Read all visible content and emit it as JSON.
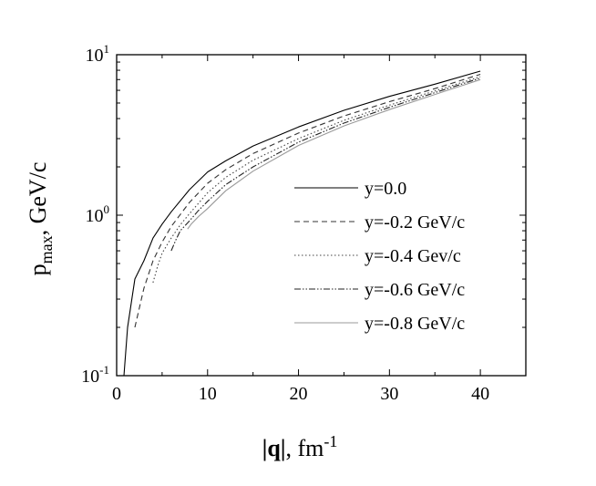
{
  "chart_data": {
    "type": "line",
    "xlabel": {
      "main": "|q|",
      "unit": ", fm",
      "unit_exp": "-1"
    },
    "ylabel": {
      "main": "p",
      "sub": "max",
      "unit": ", GeV/c"
    },
    "xlim": [
      0,
      45
    ],
    "ylim": [
      0.1,
      10
    ],
    "yscale": "log",
    "grid": false,
    "legend_position": "center-right",
    "x_ticks": [
      {
        "value": 0,
        "label": "0"
      },
      {
        "value": 10,
        "label": "10"
      },
      {
        "value": 20,
        "label": "20"
      },
      {
        "value": 30,
        "label": "30"
      },
      {
        "value": 40,
        "label": "40"
      }
    ],
    "y_ticks": [
      {
        "value": 0.1,
        "base": "10",
        "exp": "-1"
      },
      {
        "value": 1,
        "base": "10",
        "exp": "0"
      },
      {
        "value": 10,
        "base": "10",
        "exp": "1"
      }
    ],
    "series": [
      {
        "name": "y=0.0",
        "color": "#000000",
        "dash": "",
        "x": [
          0.8,
          1.2,
          2,
          3,
          4,
          5,
          6,
          8,
          10,
          12,
          15,
          20,
          25,
          30,
          35,
          40
        ],
        "y": [
          0.1,
          0.2,
          0.4,
          0.52,
          0.72,
          0.88,
          1.05,
          1.44,
          1.86,
          2.18,
          2.7,
          3.55,
          4.5,
          5.5,
          6.55,
          7.9
        ]
      },
      {
        "name": "y=-0.2 GeV/c",
        "color": "#333333",
        "dash": "6,4",
        "x": [
          2,
          3,
          4,
          5,
          6,
          8,
          10,
          12,
          15,
          20,
          25,
          30,
          35,
          40
        ],
        "y": [
          0.2,
          0.35,
          0.52,
          0.68,
          0.85,
          1.2,
          1.58,
          1.92,
          2.42,
          3.25,
          4.15,
          5.1,
          6.15,
          7.55
        ]
      },
      {
        "name": "y=-0.4 Gev/c",
        "color": "#444444",
        "dash": "1.5,2.5",
        "x": [
          4,
          4.5,
          5,
          6,
          7,
          8,
          10,
          12,
          15,
          20,
          25,
          30,
          35,
          40
        ],
        "y": [
          0.38,
          0.48,
          0.58,
          0.72,
          0.87,
          1.02,
          1.38,
          1.72,
          2.2,
          3.0,
          3.9,
          4.85,
          5.95,
          7.3
        ]
      },
      {
        "name": "y=-0.6 GeV/c",
        "color": "#222222",
        "dash": "7,2,1.5,2,1.5,2",
        "x": [
          6,
          6.5,
          7,
          8,
          9,
          10,
          12,
          15,
          20,
          25,
          30,
          35,
          40
        ],
        "y": [
          0.6,
          0.7,
          0.8,
          0.92,
          1.07,
          1.22,
          1.55,
          2.0,
          2.85,
          3.75,
          4.7,
          5.8,
          7.15
        ]
      },
      {
        "name": "y=-0.8 GeV/c",
        "color": "#999999",
        "dash": "",
        "x": [
          7.8,
          8.2,
          9,
          10,
          12,
          15,
          20,
          25,
          30,
          35,
          40
        ],
        "y": [
          0.82,
          0.88,
          0.98,
          1.1,
          1.42,
          1.88,
          2.72,
          3.6,
          4.55,
          5.65,
          7.0
        ]
      }
    ]
  }
}
